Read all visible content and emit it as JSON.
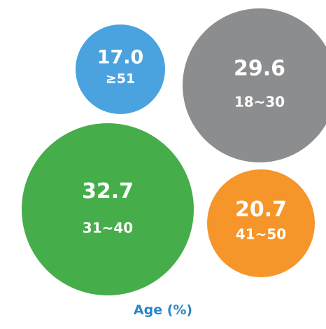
{
  "chart_data": {
    "type": "bubble",
    "title": "",
    "xlabel": "Age (%)",
    "series": [
      {
        "category": "≥51",
        "value": 17.0,
        "value_label": "17.0",
        "color": "#4aa3df"
      },
      {
        "category": "18~30",
        "value": 29.6,
        "value_label": "29.6",
        "color": "#8c8d8f"
      },
      {
        "category": "31~40",
        "value": 32.7,
        "value_label": "32.7",
        "color": "#45ad4a"
      },
      {
        "category": "41~50",
        "value": 20.7,
        "value_label": "20.7",
        "color": "#f5952a"
      }
    ]
  }
}
